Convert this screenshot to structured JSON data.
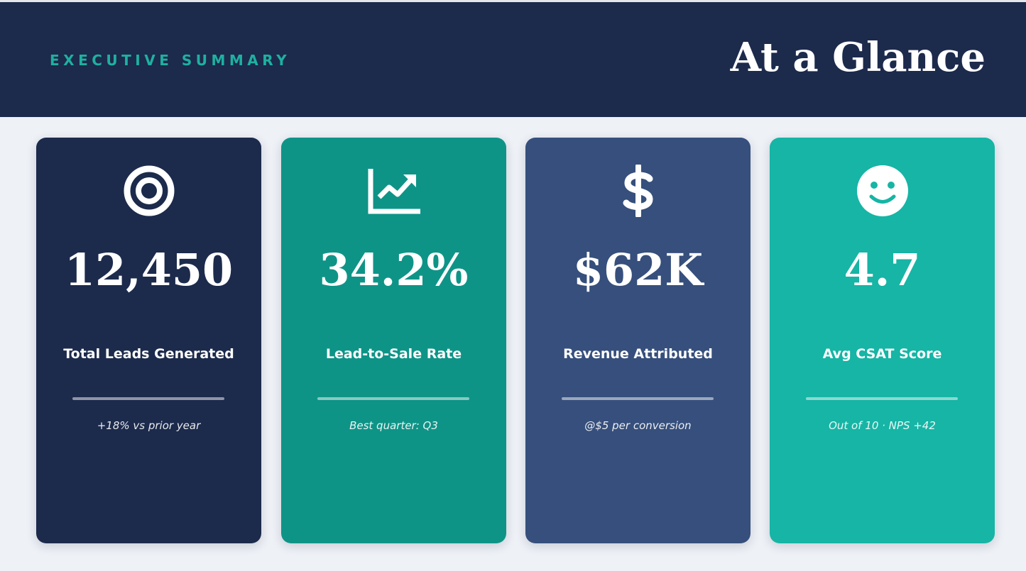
{
  "header": {
    "kicker": "EXECUTIVE SUMMARY",
    "title": "At a Glance"
  },
  "cards": [
    {
      "value": "12,450",
      "label": "Total Leads Generated",
      "note": "+18% vs prior year"
    },
    {
      "value": "34.2%",
      "label": "Lead-to-Sale Rate",
      "note": "Best quarter: Q3"
    },
    {
      "value": "$62K",
      "label": "Revenue Attributed",
      "note": "@$5 per conversion"
    },
    {
      "value": "4.7",
      "label": "Avg CSAT Score",
      "note": "Out of 10 · NPS +42"
    }
  ]
}
